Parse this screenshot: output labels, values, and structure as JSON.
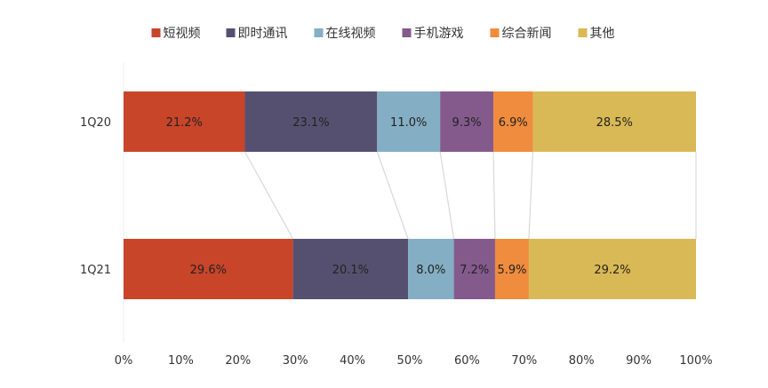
{
  "chart_data": {
    "type": "bar",
    "orientation": "horizontal",
    "stacked": "percent",
    "categories": [
      "1Q20",
      "1Q21"
    ],
    "series": [
      {
        "name": "短视频",
        "color": "#C8452A",
        "values": [
          21.2,
          29.6
        ],
        "labels": [
          "21.2%",
          "29.6%"
        ]
      },
      {
        "name": "即时通讯",
        "color": "#565070",
        "values": [
          23.1,
          20.1
        ],
        "labels": [
          "23.1%",
          "20.1%"
        ]
      },
      {
        "name": "在线视频",
        "color": "#84AEC3",
        "values": [
          11.0,
          8.0
        ],
        "labels": [
          "11.0%",
          "8.0%"
        ]
      },
      {
        "name": "手机游戏",
        "color": "#845A8D",
        "values": [
          9.3,
          7.2
        ],
        "labels": [
          "9.3%",
          "7.2%"
        ]
      },
      {
        "name": "综合新闻",
        "color": "#EF8C3D",
        "values": [
          6.9,
          5.9
        ],
        "labels": [
          "6.9%",
          "5.9%"
        ]
      },
      {
        "name": "其他",
        "color": "#D9B955",
        "values": [
          28.5,
          29.2
        ],
        "labels": [
          "28.5%",
          "29.2%"
        ]
      }
    ],
    "xlim": [
      0,
      100
    ],
    "xticks": [
      "0%",
      "10%",
      "20%",
      "30%",
      "40%",
      "50%",
      "60%",
      "70%",
      "80%",
      "90%",
      "100%"
    ],
    "grid": false,
    "legend_position": "top"
  }
}
